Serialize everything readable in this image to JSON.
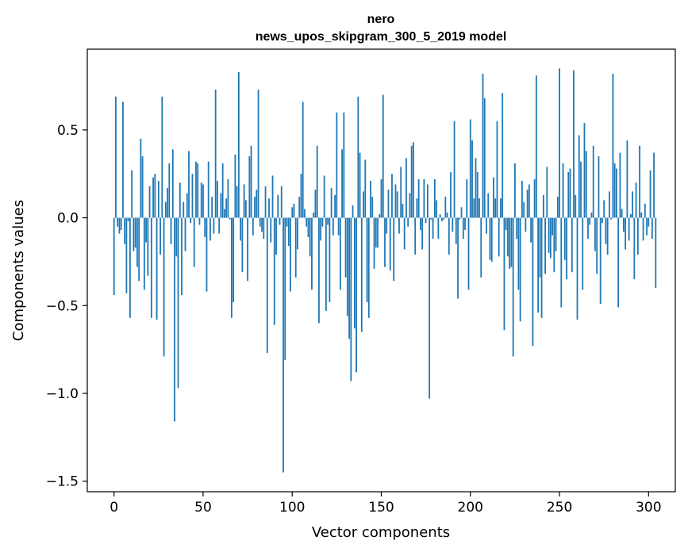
{
  "chart_data": {
    "type": "bar",
    "title_line1": "nero",
    "title_line2": "news_upos_skipgram_300_5_2019 model",
    "xlabel": "Vector components",
    "ylabel": "Components values",
    "xlim": [
      -15,
      315
    ],
    "ylim": [
      -1.56,
      0.96
    ],
    "xticks": [
      0,
      50,
      100,
      150,
      200,
      250,
      300
    ],
    "xtick_labels": [
      "0",
      "50",
      "100",
      "150",
      "200",
      "250",
      "300"
    ],
    "yticks": [
      -1.5,
      -1.0,
      -0.5,
      0.0,
      0.5
    ],
    "ytick_labels": [
      "−1.5",
      "−1.0",
      "−0.5",
      "0.0",
      "0.5"
    ],
    "bar_color": "#1f77b4",
    "grid": false,
    "values": [
      -0.44,
      0.69,
      -0.05,
      -0.09,
      -0.07,
      0.66,
      -0.15,
      -0.43,
      -0.02,
      -0.57,
      0.27,
      -0.19,
      -0.17,
      -0.28,
      -0.36,
      0.45,
      0.35,
      -0.41,
      -0.14,
      -0.33,
      0.18,
      -0.57,
      0.23,
      0.25,
      -0.58,
      0.21,
      -0.21,
      0.69,
      -0.79,
      0.09,
      0.17,
      0.31,
      -0.15,
      0.39,
      -1.16,
      -0.22,
      -0.97,
      0.2,
      -0.44,
      0.09,
      -0.19,
      0.14,
      0.38,
      -0.03,
      0.25,
      -0.28,
      0.32,
      0.31,
      -0.04,
      0.2,
      0.19,
      -0.11,
      -0.42,
      0.32,
      -0.13,
      0.12,
      -0.09,
      0.73,
      0.21,
      -0.09,
      0.14,
      0.31,
      0.05,
      0.11,
      0.22,
      -0.01,
      -0.57,
      -0.48,
      0.36,
      0.18,
      0.83,
      -0.13,
      -0.31,
      0.19,
      0.1,
      -0.36,
      0.35,
      0.41,
      -0.1,
      0.12,
      0.16,
      0.73,
      -0.05,
      -0.08,
      -0.12,
      0.18,
      -0.77,
      0.11,
      -0.14,
      0.24,
      -0.61,
      -0.21,
      0.13,
      -0.04,
      0.18,
      -1.45,
      -0.81,
      -0.05,
      -0.16,
      -0.42,
      0.06,
      0.08,
      -0.34,
      -0.18,
      0.12,
      0.25,
      0.66,
      0.05,
      -0.05,
      -0.11,
      -0.22,
      -0.41,
      0.03,
      0.16,
      0.41,
      -0.6,
      -0.13,
      -0.05,
      0.24,
      -0.53,
      -0.04,
      -0.48,
      0.17,
      -0.1,
      0.13,
      0.6,
      -0.1,
      -0.41,
      0.39,
      0.6,
      -0.34,
      -0.56,
      -0.69,
      -0.93,
      0.07,
      -0.63,
      -0.88,
      0.69,
      0.37,
      -0.65,
      0.15,
      0.33,
      -0.48,
      -0.57,
      0.21,
      0.12,
      -0.29,
      -0.17,
      -0.17,
      0.02,
      0.22,
      0.7,
      -0.28,
      -0.09,
      0.16,
      -0.3,
      0.25,
      -0.36,
      0.19,
      0.15,
      -0.09,
      0.29,
      0.08,
      -0.18,
      0.34,
      -0.05,
      0.14,
      0.41,
      0.43,
      -0.21,
      0.11,
      0.22,
      -0.07,
      -0.18,
      0.22,
      -0.03,
      0.19,
      -1.03,
      -0.01,
      -0.12,
      0.22,
      0.1,
      -0.12,
      0.02,
      -0.02,
      -0.01,
      0.12,
      0.03,
      -0.21,
      0.26,
      -0.08,
      0.55,
      -0.15,
      -0.46,
      -0.01,
      0.06,
      -0.12,
      -0.07,
      0.22,
      -0.41,
      0.56,
      0.44,
      0.11,
      0.34,
      0.26,
      0.11,
      -0.34,
      0.82,
      0.68,
      -0.09,
      0.14,
      -0.24,
      -0.25,
      0.23,
      0.11,
      0.55,
      -0.22,
      0.11,
      0.71,
      -0.64,
      -0.07,
      -0.22,
      -0.29,
      -0.28,
      -0.79,
      0.31,
      -0.12,
      -0.41,
      -0.59,
      0.21,
      0.09,
      -0.08,
      0.16,
      0.19,
      -0.14,
      -0.73,
      0.22,
      0.81,
      -0.54,
      -0.34,
      -0.57,
      0.13,
      -0.32,
      0.29,
      -0.2,
      -0.23,
      -0.1,
      -0.31,
      -0.19,
      0.12,
      0.85,
      -0.51,
      0.31,
      -0.24,
      -0.35,
      0.26,
      0.28,
      -0.31,
      0.84,
      0.13,
      -0.58,
      0.47,
      0.32,
      -0.41,
      0.54,
      0.38,
      -0.12,
      -0.04,
      0.03,
      0.41,
      -0.19,
      -0.32,
      0.35,
      -0.49,
      -0.03,
      0.1,
      -0.15,
      -0.21,
      0.15,
      -0.01,
      0.82,
      0.31,
      0.28,
      -0.51,
      0.37,
      0.05,
      -0.08,
      -0.18,
      0.44,
      -0.13,
      0.02,
      0.15,
      -0.35,
      0.2,
      -0.21,
      0.41,
      0.03,
      -0.13,
      0.08,
      -0.1,
      -0.05,
      0.27,
      -0.12,
      0.37,
      -0.4
    ]
  }
}
